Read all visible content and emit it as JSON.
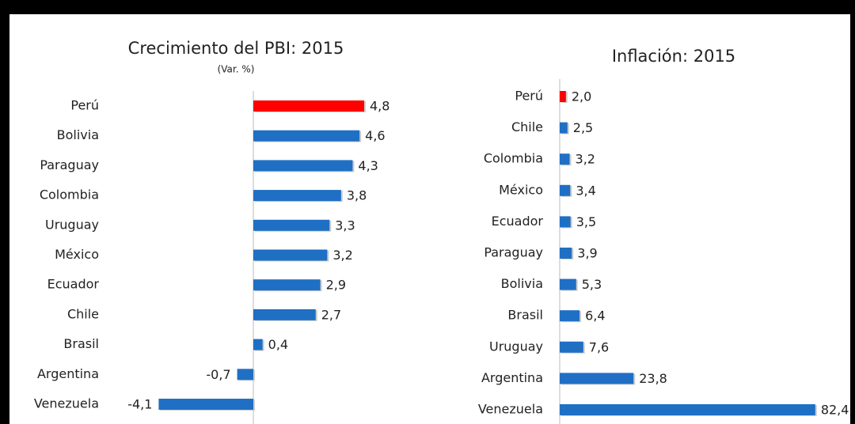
{
  "chart_data": [
    {
      "type": "bar",
      "orientation": "horizontal",
      "title": "Crecimiento del PBI: 2015",
      "subtitle": "(Var. %)",
      "categories": [
        "Perú",
        "Bolivia",
        "Paraguay",
        "Colombia",
        "Uruguay",
        "México",
        "Ecuador",
        "Chile",
        "Brasil",
        "Argentina",
        "Venezuela"
      ],
      "values": [
        4.8,
        4.6,
        4.3,
        3.8,
        3.3,
        3.2,
        2.9,
        2.7,
        0.4,
        -0.7,
        -4.1
      ],
      "value_labels": [
        "4,8",
        "4,6",
        "4,3",
        "3,8",
        "3,3",
        "3,2",
        "2,9",
        "2,7",
        "0,4",
        "-0,7",
        "-4,1"
      ],
      "colors": [
        "#ff0000",
        "#1f6fc5",
        "#1f6fc5",
        "#1f6fc5",
        "#1f6fc5",
        "#1f6fc5",
        "#1f6fc5",
        "#1f6fc5",
        "#1f6fc5",
        "#1f6fc5",
        "#1f6fc5"
      ],
      "xlim": [
        -6,
        6
      ]
    },
    {
      "type": "bar",
      "orientation": "horizontal",
      "title": "Inflación: 2015",
      "categories": [
        "Perú",
        "Chile",
        "Colombia",
        "México",
        "Ecuador",
        "Paraguay",
        "Bolivia",
        "Brasil",
        "Uruguay",
        "Argentina",
        "Venezuela"
      ],
      "values": [
        2.0,
        2.5,
        3.2,
        3.4,
        3.5,
        3.9,
        5.3,
        6.4,
        7.6,
        23.8,
        82.4
      ],
      "value_labels": [
        "2,0",
        "2,5",
        "3,2",
        "3,4",
        "3,5",
        "3,9",
        "5,3",
        "6,4",
        "7,6",
        "23,8",
        "82,4"
      ],
      "colors": [
        "#ff0000",
        "#1f6fc5",
        "#1f6fc5",
        "#1f6fc5",
        "#1f6fc5",
        "#1f6fc5",
        "#1f6fc5",
        "#1f6fc5",
        "#1f6fc5",
        "#1f6fc5",
        "#1f6fc5"
      ],
      "xlim": [
        0,
        85
      ]
    }
  ]
}
